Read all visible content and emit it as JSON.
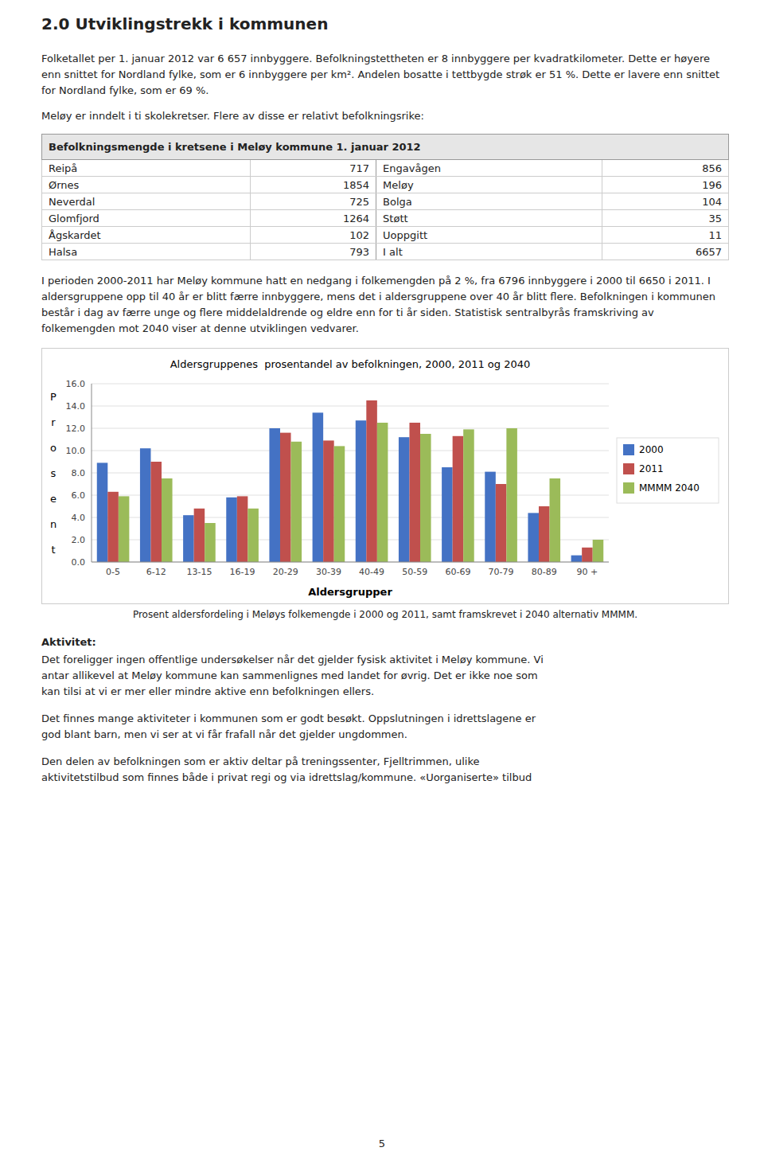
{
  "page_title": "2.0 Utviklingstrekk i kommunen",
  "paragraph1": "Folketallet per 1. januar 2012 var 6 657 innbyggere. Befolkningstettheten er 8 innbyggere per kvadratkilometer. Dette er høyere enn snittet for Nordland fylke, som er 6 innbyggere per km². Andelen bosatte i tettbygde strøk er 51 %. Dette er lavere enn snittet for Nordland fylke, som er 69 %.",
  "paragraph2": "Meløy er inndelt i ti skolekretser. Flere av disse er relativt befolkningsrike:",
  "table": {
    "title": "Befolkningsmengde i kretsene i Meløy kommune 1. januar 2012",
    "rows": [
      [
        "Reipå",
        "717",
        "Engavågen",
        "856"
      ],
      [
        "Ørnes",
        "1854",
        "Meløy",
        "196"
      ],
      [
        "Neverdal",
        "725",
        "Bolga",
        "104"
      ],
      [
        "Glomfjord",
        "1264",
        "Støtt",
        "35"
      ],
      [
        "Ågskardet",
        "102",
        "Uoppgitt",
        "11"
      ],
      [
        "Halsa",
        "793",
        "I alt",
        "6657"
      ]
    ]
  },
  "paragraph3": "I perioden 2000-2011 har Meløy kommune hatt en nedgang i folkemengden på 2 %, fra 6796 innbyggere i 2000 til 6650 i 2011. I aldersgruppene opp til 40 år er blitt færre innbyggere, mens det i aldersgruppene over 40 år blitt flere. Befolkningen i kommunen består i dag av færre unge og flere middelaldrende og eldre enn for ti år siden. Statistisk sentralbyrås framskriving av folkemengden mot 2040 viser at denne utviklingen vedvarer.",
  "chart_data": {
    "type": "bar",
    "title": "Aldersgruppenes  prosentandel av befolkningen, 2000, 2011 og 2040",
    "x_label": "Aldersgrupper",
    "y_label": "Prosent",
    "caption": "Prosent aldersfordeling i Meløys folkemengde i 2000 og 2011, samt framskrevet i 2040 alternativ MMMM.",
    "categories": [
      "0-5",
      "6-12",
      "13-15",
      "16-19",
      "20-29",
      "30-39",
      "40-49",
      "50-59",
      "60-69",
      "70-79",
      "80-89",
      "90 +"
    ],
    "series": [
      {
        "name": "2000",
        "color": "#4472C4",
        "values": [
          8.9,
          10.2,
          4.2,
          5.8,
          12.0,
          13.4,
          12.7,
          11.2,
          8.5,
          8.1,
          4.4,
          0.6
        ]
      },
      {
        "name": "2011",
        "color": "#C0504D",
        "values": [
          6.3,
          9.0,
          4.8,
          5.9,
          11.6,
          10.9,
          14.5,
          12.5,
          11.3,
          7.0,
          5.0,
          1.3
        ]
      },
      {
        "name": "MMMM 2040",
        "color": "#9BBB59",
        "values": [
          5.9,
          7.5,
          3.5,
          4.8,
          10.8,
          10.4,
          12.5,
          11.5,
          11.9,
          12.0,
          7.5,
          2.0
        ]
      }
    ],
    "ylim": [
      0,
      16.0
    ],
    "yticks": [
      {
        "value": 0.0,
        "label": "0.0"
      },
      {
        "value": 2.0,
        "label": "2.0"
      },
      {
        "value": 4.0,
        "label": "4.0"
      },
      {
        "value": 6.0,
        "label": "6.0"
      },
      {
        "value": 8.0,
        "label": "8.0"
      },
      {
        "value": 10.0,
        "label": "10.0"
      },
      {
        "value": 12.0,
        "label": "12.0"
      },
      {
        "value": 14.0,
        "label": "14.0"
      },
      {
        "value": 16.0,
        "label": "16.0"
      }
    ],
    "grid": true,
    "legend": "right"
  },
  "activity": {
    "header": "Aktivitet:",
    "lines1": [
      "Det foreligger ingen offentlige undersøkelser når det gjelder fysisk aktivitet i Meløy kommune. Vi",
      "antar allikevel at Meløy kommune kan sammenlignes med landet for øvrig. Det er ikke noe som",
      "kan tilsi at vi er mer eller mindre aktive enn befolkningen ellers."
    ],
    "lines2": [
      "Det finnes mange aktiviteter i kommunen som er godt besøkt. Oppslutningen i idrettslagene er",
      "god blant barn, men vi ser at vi får frafall når det gjelder ungdommen."
    ]
  },
  "paragraph5": [
    "Den delen av befolkningen som er aktiv deltar på treningssenter, Fjelltrimmen, ulike",
    "aktivitetstilbud som finnes både i privat regi og via idrettslag/kommune. «Uorganiserte» tilbud"
  ],
  "page_number": "5"
}
